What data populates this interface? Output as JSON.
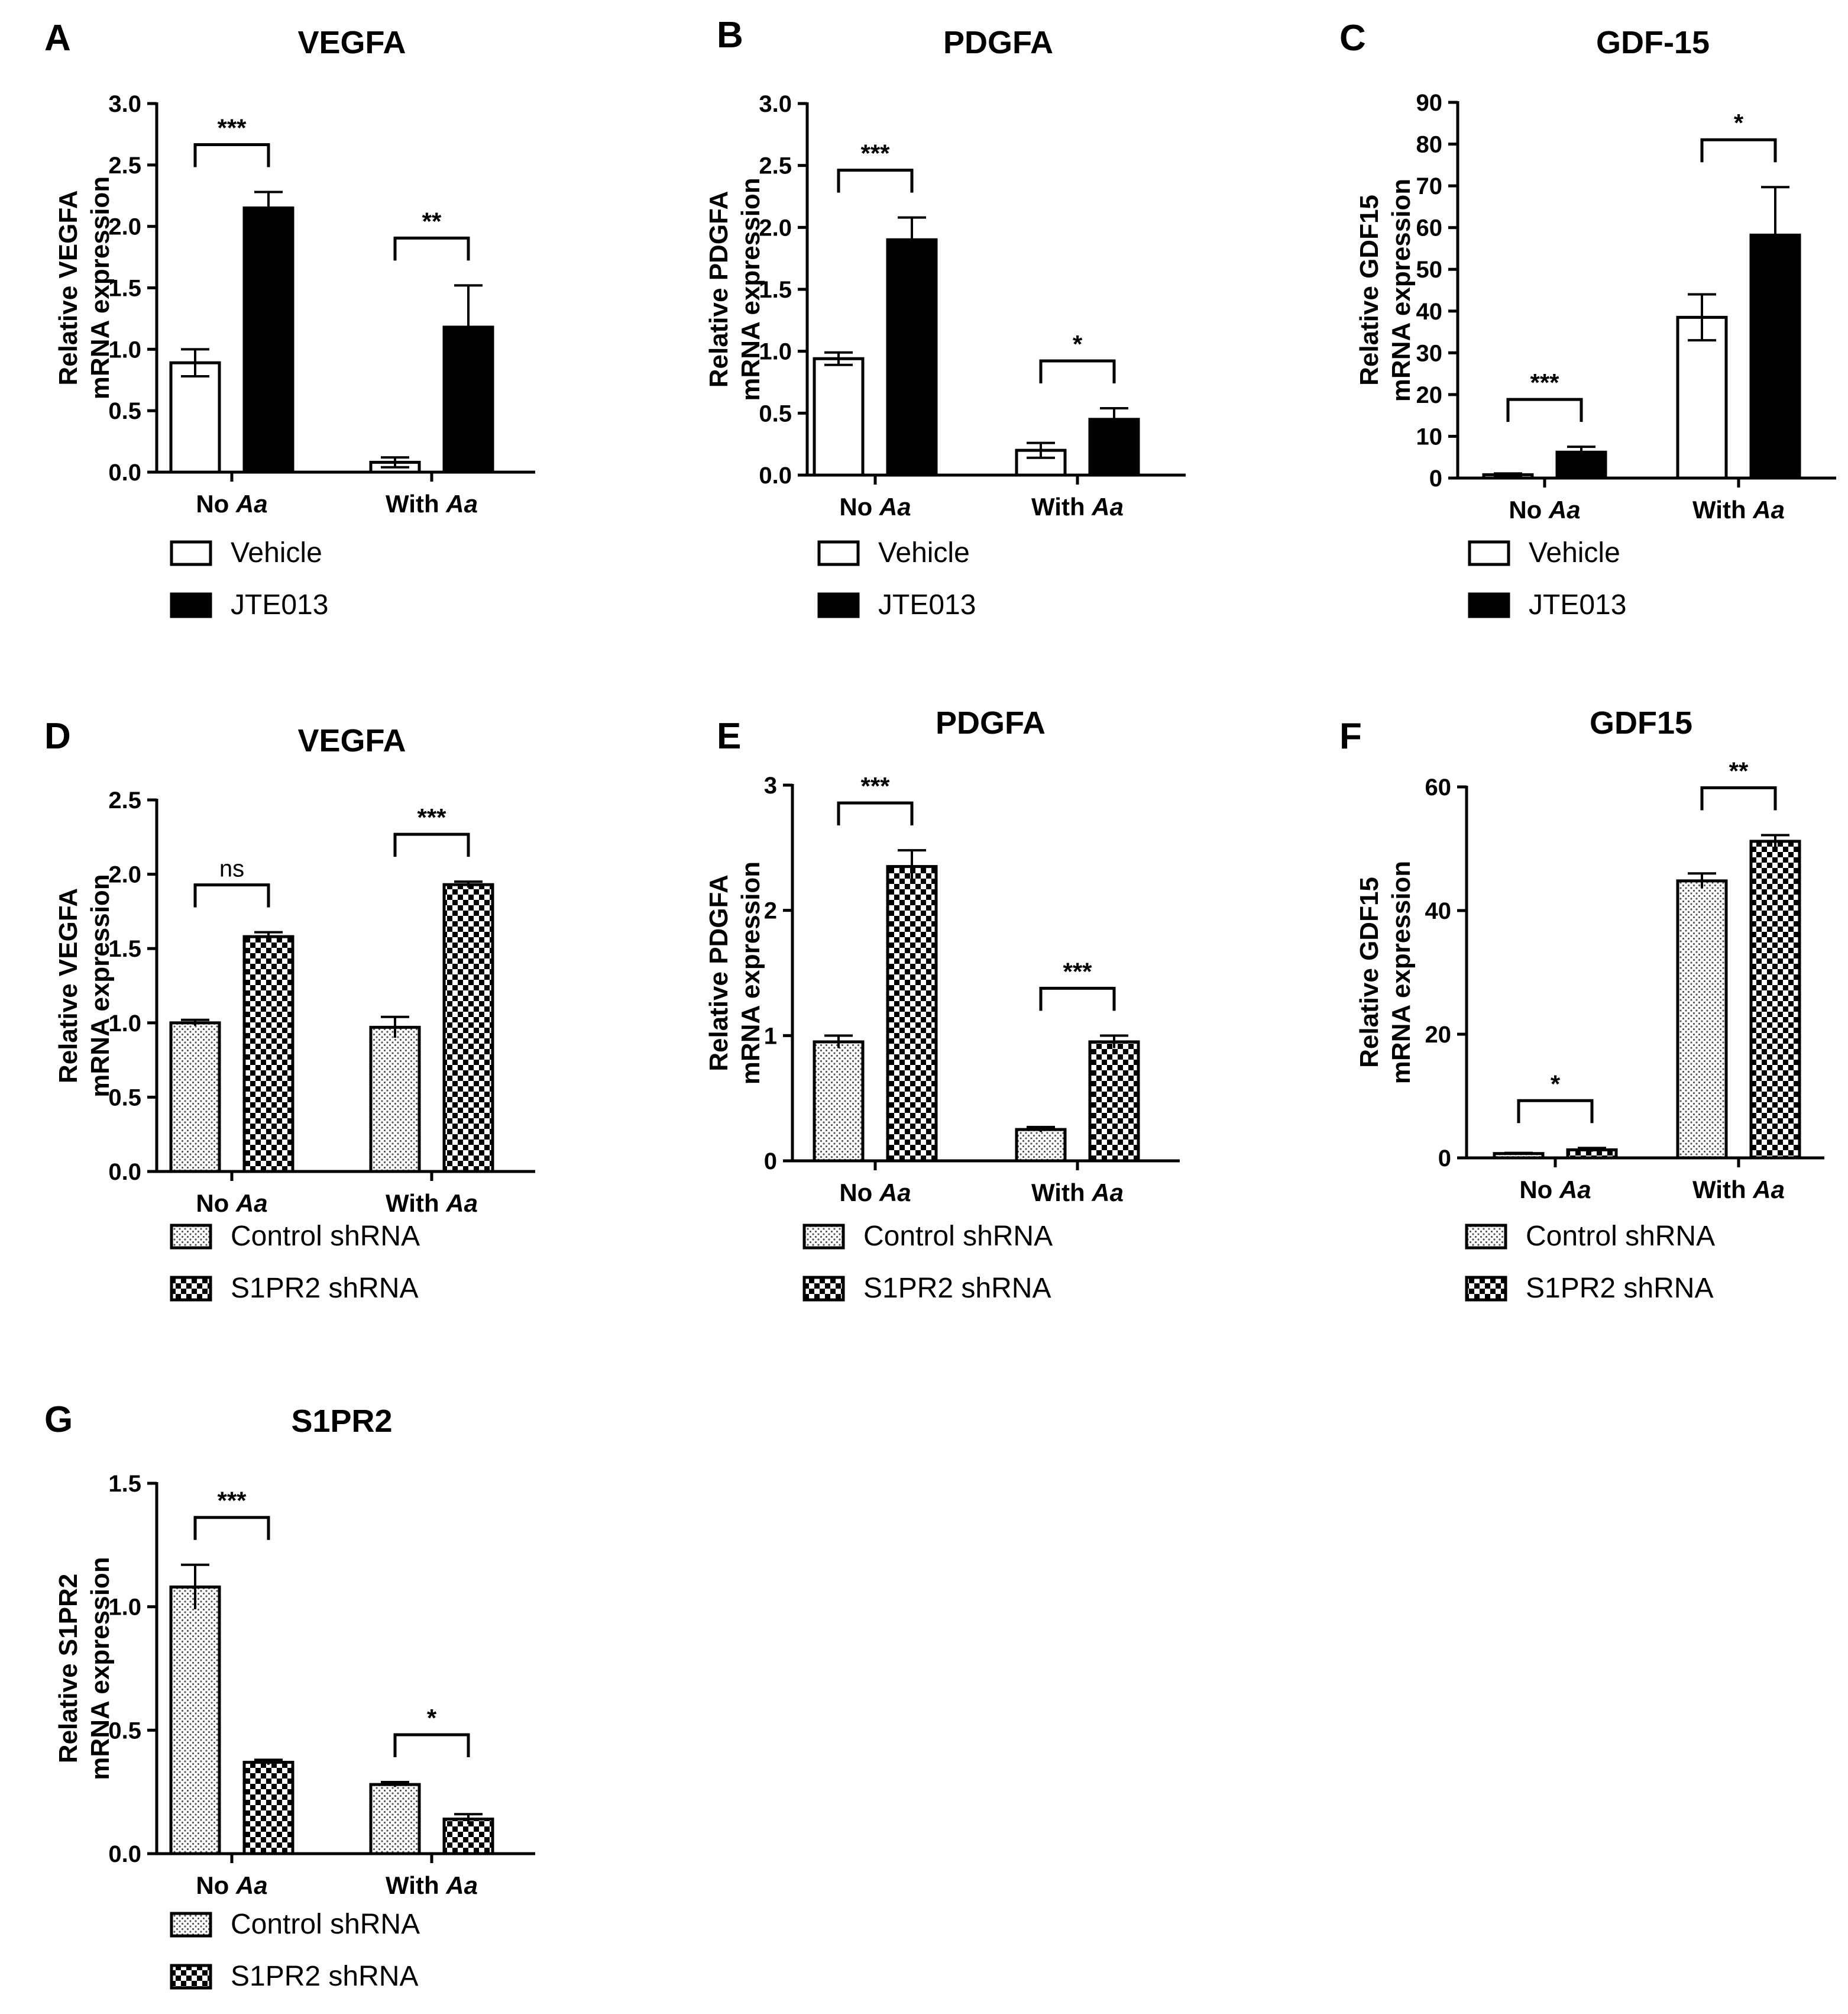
{
  "colors": {
    "ink": "#000000",
    "paper": "#ffffff",
    "dots": "#555555"
  },
  "chart_data": [
    {
      "panel": "A",
      "type": "bar",
      "title": "VEGFA",
      "ylabel": [
        "Relative VEGFA",
        "mRNA expression"
      ],
      "categories": [
        {
          "prefix": "No ",
          "italic": "Aa"
        },
        {
          "prefix": "With ",
          "italic": "Aa"
        }
      ],
      "ylim": [
        0,
        3.0
      ],
      "yticks": [
        "0.0",
        "0.5",
        "1.0",
        "1.5",
        "2.0",
        "2.5",
        "3.0"
      ],
      "series": [
        {
          "name": "Vehicle",
          "fill": "white",
          "values": [
            0.89,
            0.08
          ],
          "errors": [
            0.11,
            0.04
          ]
        },
        {
          "name": "JTE013",
          "fill": "black",
          "values": [
            2.15,
            1.18
          ],
          "errors": [
            0.13,
            0.34
          ]
        }
      ],
      "significance": [
        "***",
        "**"
      ]
    },
    {
      "panel": "B",
      "type": "bar",
      "title": "PDGFA",
      "ylabel": [
        "Relative PDGFA",
        "mRNA expression"
      ],
      "categories": [
        {
          "prefix": "No ",
          "italic": "Aa"
        },
        {
          "prefix": "With ",
          "italic": "Aa"
        }
      ],
      "ylim": [
        0,
        3.0
      ],
      "yticks": [
        "0.0",
        "0.5",
        "1.0",
        "1.5",
        "2.0",
        "2.5",
        "3.0"
      ],
      "series": [
        {
          "name": "Vehicle",
          "fill": "white",
          "values": [
            0.94,
            0.2
          ],
          "errors": [
            0.05,
            0.06
          ]
        },
        {
          "name": "JTE013",
          "fill": "black",
          "values": [
            1.9,
            0.45
          ],
          "errors": [
            0.18,
            0.09
          ]
        }
      ],
      "significance": [
        "***",
        "*"
      ]
    },
    {
      "panel": "C",
      "type": "bar",
      "title": "GDF-15",
      "ylabel": [
        "Relative GDF15",
        "mRNA expression"
      ],
      "categories": [
        {
          "prefix": "No ",
          "italic": "Aa"
        },
        {
          "prefix": "With ",
          "italic": "Aa"
        }
      ],
      "ylim": [
        0,
        90
      ],
      "yticks": [
        "0",
        "10",
        "20",
        "30",
        "40",
        "50",
        "60",
        "70",
        "80",
        "90"
      ],
      "series": [
        {
          "name": "Vehicle",
          "fill": "white",
          "values": [
            0.8,
            38.5
          ],
          "errors": [
            0.3,
            5.5
          ]
        },
        {
          "name": "JTE013",
          "fill": "black",
          "values": [
            6.2,
            58.2
          ],
          "errors": [
            1.3,
            11.5
          ]
        }
      ],
      "significance": [
        "***",
        "*"
      ]
    },
    {
      "panel": "D",
      "type": "bar",
      "title": "VEGFA",
      "ylabel": [
        "Relative VEGFA",
        "mRNA expression"
      ],
      "categories": [
        {
          "prefix": "No ",
          "italic": "Aa"
        },
        {
          "prefix": "With ",
          "italic": "Aa"
        }
      ],
      "ylim": [
        0,
        2.5
      ],
      "yticks": [
        "0.0",
        "0.5",
        "1.0",
        "1.5",
        "2.0",
        "2.5"
      ],
      "series": [
        {
          "name": "Control shRNA",
          "fill": "dots",
          "values": [
            1.0,
            0.97
          ],
          "errors": [
            0.02,
            0.07
          ]
        },
        {
          "name": "S1PR2 shRNA",
          "fill": "checker",
          "values": [
            1.58,
            1.93
          ],
          "errors": [
            0.03,
            0.02
          ]
        }
      ],
      "significance": [
        "ns",
        "***"
      ]
    },
    {
      "panel": "E",
      "type": "bar",
      "title": "PDGFA",
      "ylabel": [
        "Relative PDGFA",
        "mRNA expression"
      ],
      "categories": [
        {
          "prefix": "No ",
          "italic": "Aa"
        },
        {
          "prefix": "With ",
          "italic": "Aa"
        }
      ],
      "ylim": [
        0,
        3
      ],
      "yticks": [
        "0",
        "1",
        "2",
        "3"
      ],
      "series": [
        {
          "name": "Control shRNA",
          "fill": "dots",
          "values": [
            0.95,
            0.25
          ],
          "errors": [
            0.05,
            0.02
          ]
        },
        {
          "name": "S1PR2 shRNA",
          "fill": "checker",
          "values": [
            2.35,
            0.95
          ],
          "errors": [
            0.13,
            0.05
          ]
        }
      ],
      "significance": [
        "***",
        "***"
      ]
    },
    {
      "panel": "F",
      "type": "bar",
      "title": "GDF15",
      "ylabel": [
        "Relative GDF15",
        "mRNA expression"
      ],
      "categories": [
        {
          "prefix": "No ",
          "italic": "Aa"
        },
        {
          "prefix": "With ",
          "italic": "Aa"
        }
      ],
      "ylim": [
        0,
        60
      ],
      "yticks": [
        "0",
        "20",
        "40",
        "60"
      ],
      "series": [
        {
          "name": "Control shRNA",
          "fill": "dots",
          "values": [
            0.7,
            44.8
          ],
          "errors": [
            0.1,
            1.2
          ]
        },
        {
          "name": "S1PR2 shRNA",
          "fill": "checker",
          "values": [
            1.3,
            51.2
          ],
          "errors": [
            0.3,
            1.0
          ]
        }
      ],
      "significance": [
        "*",
        "**"
      ]
    },
    {
      "panel": "G",
      "type": "bar",
      "title": "S1PR2",
      "ylabel": [
        "Relative S1PR2",
        "mRNA expression"
      ],
      "categories": [
        {
          "prefix": "No ",
          "italic": "Aa"
        },
        {
          "prefix": "With ",
          "italic": "Aa"
        }
      ],
      "ylim": [
        0,
        1.5
      ],
      "yticks": [
        "0.0",
        "0.5",
        "1.0",
        "1.5"
      ],
      "series": [
        {
          "name": "Control shRNA",
          "fill": "dots",
          "values": [
            1.08,
            0.28
          ],
          "errors": [
            0.09,
            0.01
          ]
        },
        {
          "name": "S1PR2 shRNA",
          "fill": "checker",
          "values": [
            0.37,
            0.14
          ],
          "errors": [
            0.01,
            0.02
          ]
        }
      ],
      "significance": [
        "***",
        "*"
      ]
    }
  ]
}
